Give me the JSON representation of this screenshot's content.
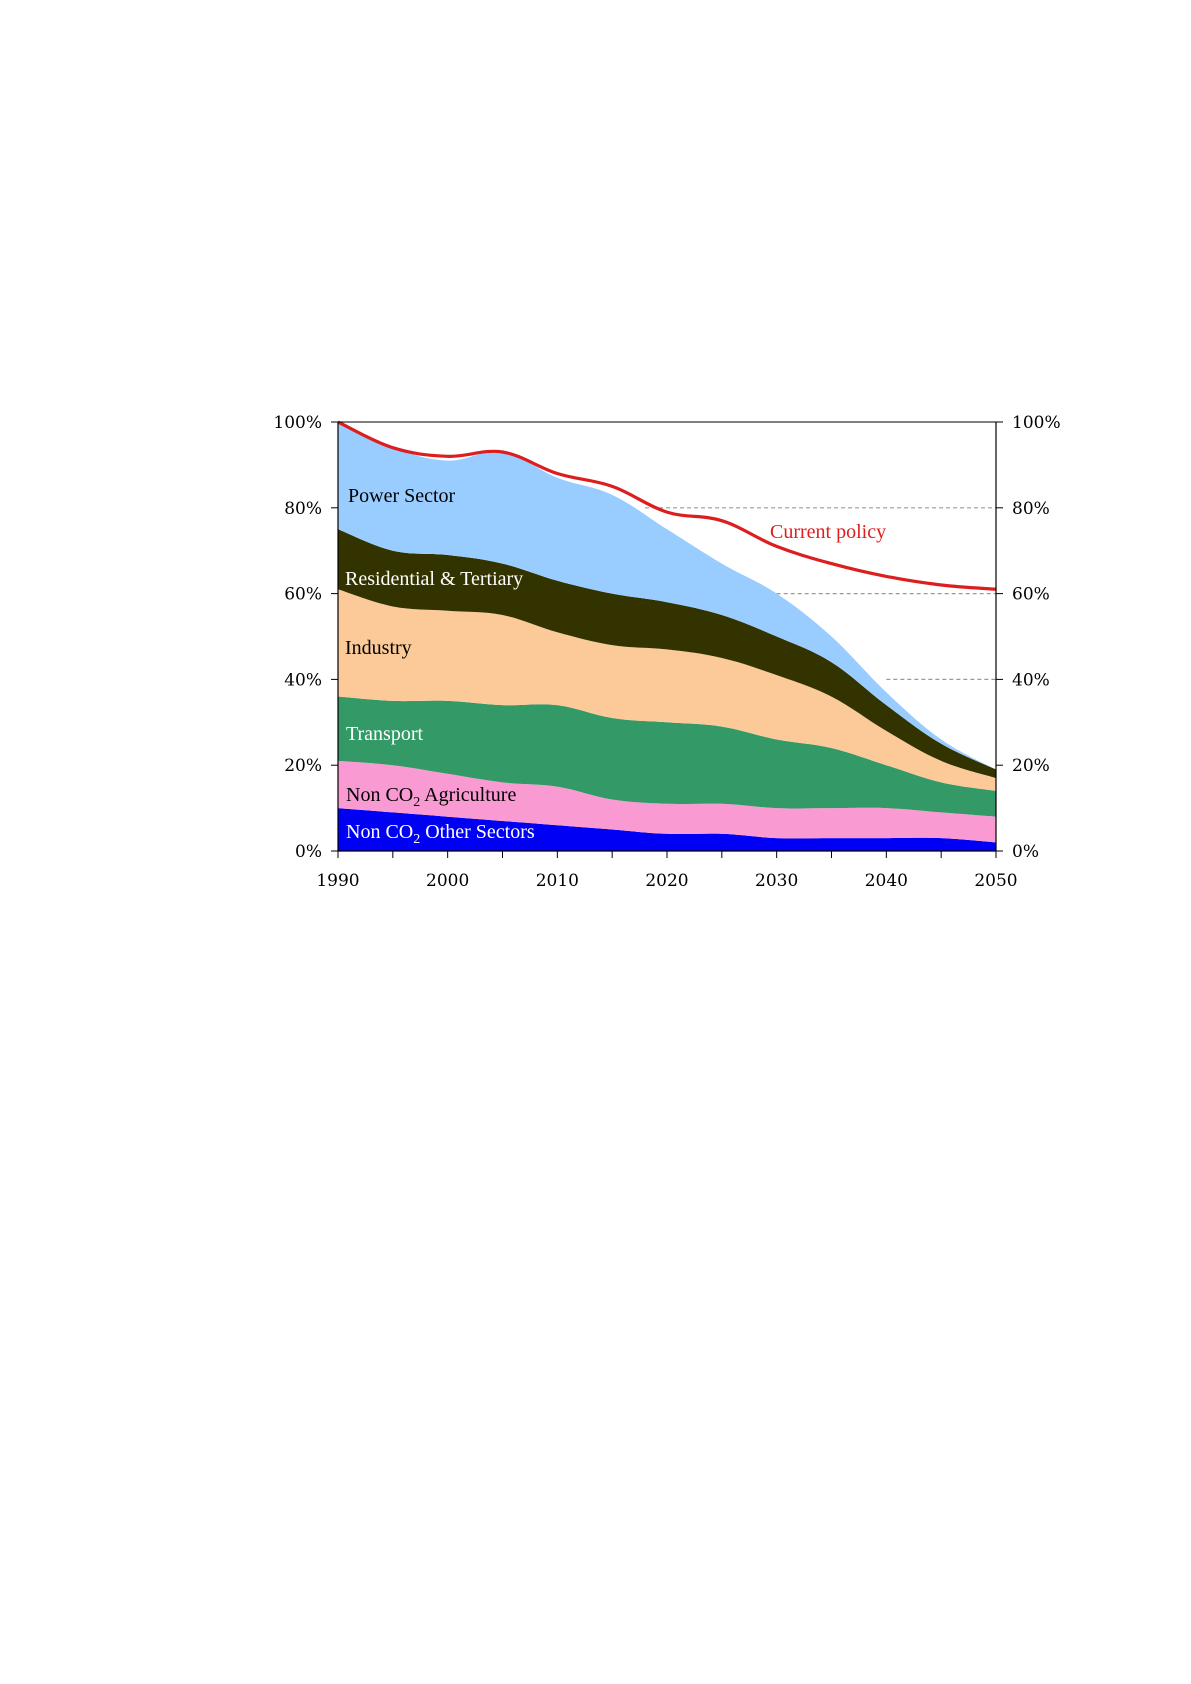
{
  "chart_data": {
    "type": "area",
    "stacked": true,
    "title": "",
    "xlabel": "",
    "ylabel": "",
    "x": [
      1990,
      1995,
      2000,
      2005,
      2010,
      2015,
      2020,
      2025,
      2030,
      2035,
      2040,
      2045,
      2050
    ],
    "xlim": [
      1990,
      2050
    ],
    "ylim": [
      0,
      100
    ],
    "x_ticks": [
      "1990",
      "2000",
      "2010",
      "2020",
      "2030",
      "2040",
      "2050"
    ],
    "y_ticks_left": [
      "0%",
      "20%",
      "40%",
      "60%",
      "80%",
      "100%"
    ],
    "y_ticks_right": [
      "0%",
      "20%",
      "40%",
      "60%",
      "80%",
      "100%"
    ],
    "gridlines": [
      40,
      60,
      80
    ],
    "series": [
      {
        "name": "Non CO2 Other Sectors",
        "label": "Non CO",
        "sub": "2",
        "label_rest": " Other Sectors",
        "color": "#0000f5",
        "text_color": "#ffffff",
        "values": [
          10,
          9,
          8,
          7,
          6,
          5,
          4,
          4,
          3,
          3,
          3,
          3,
          2
        ]
      },
      {
        "name": "Non CO2 Agriculture",
        "label": "Non CO",
        "sub": "2",
        "label_rest": " Agriculture",
        "color": "#f99bd2",
        "text_color": "#000000",
        "values": [
          11,
          11,
          10,
          9,
          9,
          7,
          7,
          7,
          7,
          7,
          7,
          6,
          6
        ]
      },
      {
        "name": "Transport",
        "label": "Transport",
        "color": "#339966",
        "text_color": "#ffffff",
        "values": [
          15,
          15,
          17,
          18,
          19,
          19,
          19,
          18,
          16,
          14,
          10,
          7,
          6
        ]
      },
      {
        "name": "Industry",
        "label": "Industry",
        "color": "#fcca99",
        "text_color": "#000000",
        "values": [
          25,
          22,
          21,
          21,
          17,
          17,
          17,
          16,
          15,
          12,
          8,
          5,
          3
        ]
      },
      {
        "name": "Residential & Tertiary",
        "label": "Residential & Tertiary",
        "color": "#333300",
        "text_color": "#ffffff",
        "values": [
          14,
          13,
          13,
          12,
          12,
          12,
          11,
          10,
          9,
          8,
          6,
          4,
          2
        ]
      },
      {
        "name": "Power Sector",
        "label": "Power Sector",
        "color": "#99ccff",
        "text_color": "#000000",
        "values": [
          25,
          24,
          22,
          26,
          24,
          23,
          17,
          12,
          10,
          6,
          3,
          1,
          0
        ]
      }
    ],
    "lines": [
      {
        "name": "Current policy",
        "label": "Current policy",
        "color": "#dc1e1e",
        "values": [
          100,
          94,
          92,
          93,
          88,
          85,
          79,
          77,
          71,
          67,
          64,
          62,
          61
        ]
      }
    ]
  }
}
